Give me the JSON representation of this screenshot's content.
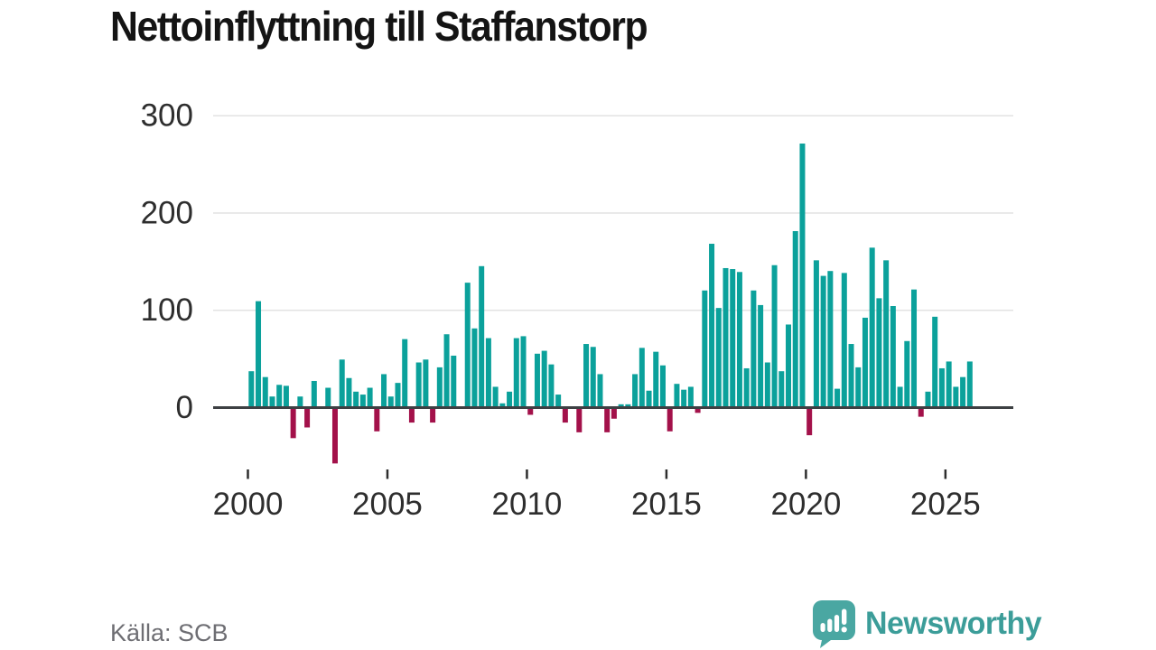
{
  "title": "Nettoinflyttning till Staffanstorp",
  "source": "Källa: SCB",
  "branding": {
    "name": "Newsworthy",
    "icon": "newsworthy-speech-bubble-bar-chart-icon"
  },
  "colors": {
    "background": "#ffffff",
    "bar_positive": "#0ba19b",
    "bar_negative": "#a3114a",
    "zero_axis": "#3d4043",
    "gridline": "#e2e2e2",
    "title_text": "#141414",
    "tick_label": "#2e2e2e",
    "tick_mark": "#2e2e2e",
    "source_text": "#6e6e73",
    "brand_icon_teal": "#4aa7a2",
    "brand_text_teal": "#3c9d99"
  },
  "chart_data": {
    "type": "bar",
    "title": "Nettoinflyttning till Staffanstorp",
    "frequency": "quarterly",
    "x_start": {
      "year": 2000,
      "quarter": 1
    },
    "x_end": {
      "year": 2025,
      "quarter": 4
    },
    "x_tick_labels": [
      "2000",
      "2005",
      "2010",
      "2015",
      "2020",
      "2025"
    ],
    "x_tick_years": [
      2000,
      2005,
      2010,
      2015,
      2020,
      2025
    ],
    "y_tick_labels": [
      "0",
      "100",
      "200",
      "300"
    ],
    "y_ticks": [
      0,
      100,
      200,
      300
    ],
    "ylim": [
      -70,
      310
    ],
    "grid": "horizontal",
    "legend": "none",
    "xlabel": "",
    "ylabel": "",
    "values": [
      36,
      108,
      30,
      10,
      22,
      21,
      -30,
      10,
      -19,
      26,
      0,
      19,
      -56,
      48,
      29,
      15,
      12,
      19,
      -23,
      33,
      10,
      24,
      69,
      -14,
      45,
      48,
      -14,
      40,
      74,
      52,
      0,
      127,
      80,
      144,
      70,
      20,
      3,
      15,
      70,
      72,
      -6,
      54,
      57,
      43,
      12,
      -14,
      0,
      -24,
      64,
      61,
      33,
      -24,
      -10,
      2,
      2,
      33,
      60,
      16,
      56,
      42,
      -23,
      23,
      17,
      20,
      -4,
      119,
      167,
      101,
      142,
      141,
      138,
      39,
      119,
      104,
      45,
      145,
      36,
      84,
      180,
      270,
      -27,
      150,
      134,
      139,
      18,
      137,
      64,
      40,
      91,
      163,
      111,
      150,
      103,
      20,
      67,
      120,
      -8,
      15,
      92,
      39,
      46,
      20,
      30,
      46
    ]
  }
}
